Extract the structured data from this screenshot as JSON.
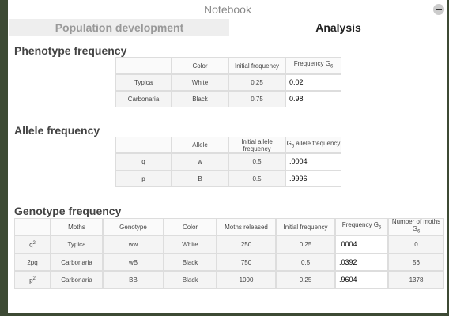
{
  "window": {
    "title": "Notebook"
  },
  "tabs": [
    "Population development",
    "Analysis"
  ],
  "sections": [
    {
      "heading": "Phenotype frequency",
      "table": {
        "headers": [
          "",
          "Color",
          "Initial frequency",
          {
            "text": "Frequency G",
            "sub": "6"
          }
        ],
        "rows": [
          [
            "Typica",
            "White",
            "0.25",
            "0.02"
          ],
          [
            "Carbonaria",
            "Black",
            "0.75",
            "0.98"
          ]
        ]
      }
    },
    {
      "heading": "Allele frequency",
      "table": {
        "headers": [
          "",
          "Allele",
          "Initial allele frequency",
          {
            "text": "G",
            "sub": "6",
            "rest": " allele frequency"
          }
        ],
        "rows": [
          [
            "q",
            "w",
            "0.5",
            ".0004"
          ],
          [
            "p",
            "B",
            "0.5",
            ".9996"
          ]
        ]
      }
    },
    {
      "heading": "Genotype frequency",
      "table": {
        "headers": [
          "",
          "Moths",
          "Genotype",
          "Color",
          "Moths released",
          "Initial frequency",
          {
            "text": "Frequency G",
            "sub": "5"
          },
          {
            "text": "Number of moths G",
            "sub": "6"
          }
        ],
        "rows": [
          [
            {
              "text": "q",
              "sup": "2"
            },
            "Typica",
            "ww",
            "White",
            "250",
            "0.25",
            ".0004",
            "0"
          ],
          [
            "2pq",
            "Carbonaria",
            "wB",
            "Black",
            "750",
            "0.5",
            ".0392",
            "56"
          ],
          [
            {
              "text": "p",
              "sup": "2"
            },
            "Carbonaria",
            "BB",
            "Black",
            "1000",
            "0.25",
            ".9604",
            "1378"
          ]
        ]
      }
    }
  ]
}
